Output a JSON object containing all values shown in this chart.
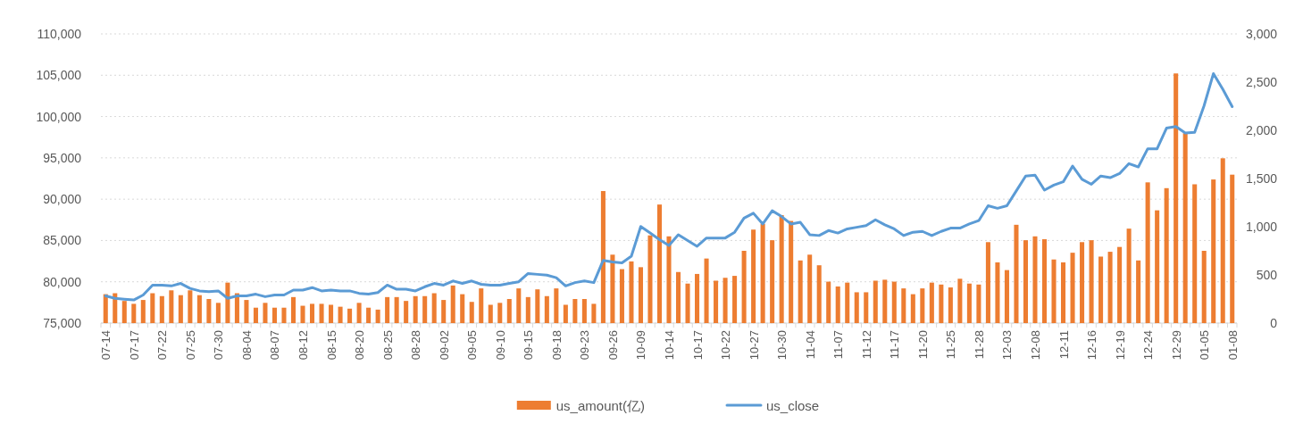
{
  "chart_data": {
    "type": "bar",
    "categories": [
      "07-14",
      null,
      null,
      "07-17",
      null,
      null,
      "07-22",
      null,
      null,
      "07-25",
      null,
      null,
      "07-30",
      null,
      null,
      "08-04",
      null,
      null,
      "08-07",
      null,
      null,
      "08-12",
      null,
      null,
      "08-15",
      null,
      null,
      "08-20",
      null,
      null,
      "08-25",
      null,
      null,
      "08-28",
      null,
      null,
      "09-02",
      null,
      null,
      "09-05",
      null,
      null,
      "09-10",
      null,
      null,
      "09-15",
      null,
      null,
      "09-18",
      null,
      null,
      "09-23",
      null,
      null,
      "09-26",
      null,
      null,
      "10-09",
      null,
      null,
      "10-14",
      null,
      null,
      "10-17",
      null,
      null,
      "10-22",
      null,
      null,
      "10-27",
      null,
      null,
      "10-30",
      null,
      null,
      "11-04",
      null,
      null,
      "11-07",
      null,
      null,
      "11-12",
      null,
      null,
      "11-17",
      null,
      null,
      "11-20",
      null,
      null,
      "11-25",
      null,
      null,
      "11-28",
      null,
      null,
      "12-03",
      null,
      null,
      "12-08",
      null,
      null,
      "12-11",
      null,
      null,
      "12-16",
      null,
      null,
      "12-19",
      null,
      null,
      "12-24",
      null,
      null,
      "12-29",
      null,
      null,
      "01-05",
      null,
      null,
      "01-08"
    ],
    "series": [
      {
        "name": "us_amount(亿)",
        "axis": "y2",
        "color": "#ed7d31",
        "values": [
          300,
          310,
          230,
          200,
          240,
          310,
          280,
          340,
          290,
          340,
          290,
          250,
          210,
          420,
          310,
          240,
          160,
          210,
          160,
          160,
          270,
          180,
          200,
          200,
          190,
          170,
          150,
          210,
          160,
          140,
          270,
          270,
          230,
          280,
          280,
          310,
          240,
          390,
          300,
          220,
          360,
          190,
          210,
          250,
          360,
          270,
          350,
          280,
          360,
          190,
          250,
          250,
          200,
          1370,
          710,
          560,
          640,
          580,
          910,
          1230,
          900,
          530,
          410,
          510,
          670,
          440,
          470,
          490,
          750,
          970,
          1030,
          860,
          1120,
          1060,
          650,
          710,
          600,
          430,
          380,
          420,
          320,
          320,
          440,
          450,
          430,
          360,
          300,
          360,
          420,
          400,
          370,
          460,
          410,
          400,
          840,
          630,
          550,
          1020,
          860,
          900,
          870,
          660,
          630,
          730,
          840,
          860,
          690,
          740,
          790,
          980,
          650,
          1460,
          1170,
          1400,
          2590,
          1970,
          1440,
          750,
          1490,
          1710,
          1540
        ]
      },
      {
        "name": "us_close",
        "type": "line",
        "color": "#5b9bd5",
        "values": [
          78300,
          78000,
          77900,
          77800,
          78400,
          79600,
          79600,
          79500,
          79800,
          79200,
          78900,
          78800,
          78900,
          78000,
          78300,
          78300,
          78500,
          78200,
          78400,
          78400,
          79000,
          79000,
          79300,
          78900,
          79000,
          78900,
          78900,
          78600,
          78500,
          78700,
          79600,
          79100,
          79100,
          78900,
          79400,
          79800,
          79600,
          80100,
          79800,
          80100,
          79700,
          79600,
          79600,
          79800,
          80000,
          81000,
          80900,
          80800,
          80500,
          79500,
          79900,
          80100,
          79900,
          82600,
          82400,
          82300,
          83100,
          86700,
          85900,
          85100,
          84400,
          85700,
          85000,
          84300,
          85300,
          85300,
          85300,
          86000,
          87700,
          88300,
          87000,
          88600,
          87900,
          87000,
          87200,
          85700,
          85600,
          86200,
          85900,
          86400,
          86600,
          86800,
          87500,
          86900,
          86400,
          85600,
          86000,
          86100,
          85600,
          86100,
          86500,
          86500,
          87000,
          87400,
          89200,
          88900,
          89200,
          91000,
          92800,
          92900,
          91100,
          91700,
          92100,
          94000,
          92400,
          91800,
          92800,
          92600,
          93100,
          94300,
          93900,
          96100,
          96100,
          98600,
          98800,
          98000,
          98100,
          101300,
          105200,
          103300,
          101200
        ]
      }
    ],
    "ylim": [
      75000,
      110000
    ],
    "yticks": [
      {
        "value": 75000,
        "label": "75,000"
      },
      {
        "value": 80000,
        "label": "80,000"
      },
      {
        "value": 85000,
        "label": "85,000"
      },
      {
        "value": 90000,
        "label": "90,000"
      },
      {
        "value": 95000,
        "label": "95,000"
      },
      {
        "value": 100000,
        "label": "100,000"
      },
      {
        "value": 105000,
        "label": "105,000"
      },
      {
        "value": 110000,
        "label": "110,000"
      }
    ],
    "y2lim": [
      0,
      3000
    ],
    "y2ticks": [
      0,
      500,
      {
        "value": 1000,
        "label": "1,000"
      },
      {
        "value": 1500,
        "label": "1,500"
      },
      {
        "value": 2000,
        "label": "2,000"
      },
      {
        "value": 2500,
        "label": "2,500"
      },
      {
        "value": 3000,
        "label": "3,000"
      }
    ],
    "grid": "y",
    "legend": "bottom"
  }
}
